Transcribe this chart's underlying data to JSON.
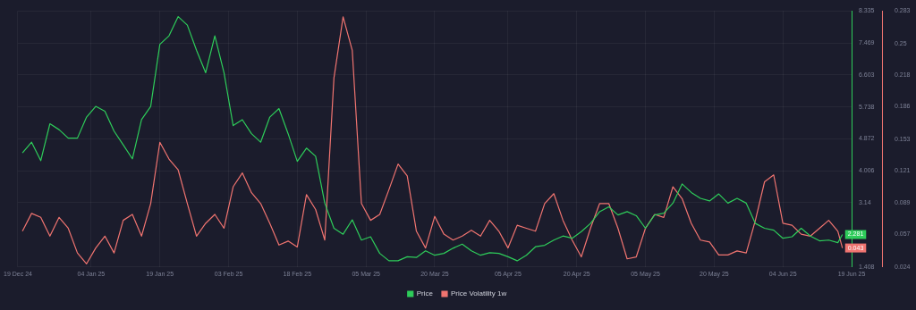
{
  "chart_data": {
    "type": "line",
    "x": [
      "2024-12-20",
      "2024-12-22",
      "2024-12-24",
      "2024-12-26",
      "2024-12-28",
      "2024-12-30",
      "2025-01-01",
      "2025-01-03",
      "2025-01-05",
      "2025-01-07",
      "2025-01-09",
      "2025-01-11",
      "2025-01-13",
      "2025-01-15",
      "2025-01-17",
      "2025-01-19",
      "2025-01-21",
      "2025-01-23",
      "2025-01-25",
      "2025-01-27",
      "2025-01-29",
      "2025-01-31",
      "2025-02-02",
      "2025-02-04",
      "2025-02-06",
      "2025-02-08",
      "2025-02-10",
      "2025-02-12",
      "2025-02-14",
      "2025-02-16",
      "2025-02-18",
      "2025-02-20",
      "2025-02-22",
      "2025-02-24",
      "2025-02-26",
      "2025-02-28",
      "2025-03-02",
      "2025-03-04",
      "2025-03-06",
      "2025-03-08",
      "2025-03-10",
      "2025-03-12",
      "2025-03-14",
      "2025-03-16",
      "2025-03-18",
      "2025-03-20",
      "2025-03-22",
      "2025-03-24",
      "2025-03-26",
      "2025-03-28",
      "2025-03-30",
      "2025-04-01",
      "2025-04-03",
      "2025-04-05",
      "2025-04-07",
      "2025-04-09",
      "2025-04-11",
      "2025-04-13",
      "2025-04-15",
      "2025-04-17",
      "2025-04-19",
      "2025-04-21",
      "2025-04-23",
      "2025-04-25",
      "2025-04-27",
      "2025-04-29",
      "2025-05-01",
      "2025-05-03",
      "2025-05-05",
      "2025-05-07",
      "2025-05-09",
      "2025-05-11",
      "2025-05-13",
      "2025-05-15",
      "2025-05-17",
      "2025-05-19",
      "2025-05-21",
      "2025-05-23",
      "2025-05-25",
      "2025-05-27",
      "2025-05-29",
      "2025-05-31",
      "2025-06-02",
      "2025-06-04",
      "2025-06-06",
      "2025-06-08",
      "2025-06-10",
      "2025-06-12",
      "2025-06-14",
      "2025-06-16",
      "2025-06-17"
    ],
    "series": [
      {
        "name": "Price",
        "color": "#2ecc5a",
        "values": [
          4.49,
          4.78,
          4.28,
          5.28,
          5.12,
          4.89,
          4.89,
          5.46,
          5.75,
          5.62,
          5.08,
          4.71,
          4.33,
          5.39,
          5.75,
          7.43,
          7.66,
          8.18,
          7.95,
          7.27,
          6.66,
          7.66,
          6.66,
          5.23,
          5.39,
          5.01,
          4.78,
          5.46,
          5.69,
          5.01,
          4.26,
          4.62,
          4.4,
          3.13,
          2.45,
          2.29,
          2.68,
          2.13,
          2.22,
          1.77,
          1.57,
          1.57,
          1.68,
          1.66,
          1.84,
          1.72,
          1.77,
          1.91,
          2.02,
          1.84,
          1.72,
          1.79,
          1.77,
          1.68,
          1.57,
          1.72,
          1.95,
          1.99,
          2.13,
          2.24,
          2.18,
          2.36,
          2.58,
          2.9,
          3.03,
          2.81,
          2.9,
          2.79,
          2.45,
          2.81,
          2.86,
          3.13,
          3.65,
          3.42,
          3.26,
          3.19,
          3.38,
          3.13,
          3.26,
          3.13,
          2.58,
          2.45,
          2.4,
          2.18,
          2.22,
          2.45,
          2.24,
          2.11,
          2.13,
          2.06,
          2.281
        ],
        "value_labels": [
          null,
          null,
          null,
          null,
          null,
          null,
          null,
          null,
          null,
          null,
          null,
          null,
          null,
          null,
          null,
          null,
          null,
          null,
          null,
          null,
          null,
          null,
          null,
          null,
          null,
          null,
          null,
          null,
          null,
          null,
          null,
          null,
          null,
          null,
          null,
          null,
          null,
          null,
          null,
          null,
          null,
          null,
          null,
          null,
          null,
          null,
          null,
          null,
          null,
          null,
          null,
          null,
          null,
          null,
          null,
          null,
          null,
          null,
          null,
          null,
          null,
          null,
          null,
          null,
          null,
          null,
          null,
          null,
          null,
          null,
          null,
          null,
          null,
          null,
          null,
          null,
          null,
          null,
          null,
          null,
          null,
          null,
          null,
          null,
          null,
          null,
          null,
          null,
          null,
          null,
          "2.281"
        ]
      },
      {
        "name": "Price Volatility 1w",
        "color": "#f07470",
        "axis": "y2",
        "values": [
          0.06,
          0.078,
          0.074,
          0.055,
          0.074,
          0.063,
          0.038,
          0.027,
          0.043,
          0.055,
          0.038,
          0.071,
          0.077,
          0.055,
          0.088,
          0.15,
          0.133,
          0.122,
          0.088,
          0.055,
          0.068,
          0.077,
          0.063,
          0.105,
          0.119,
          0.099,
          0.088,
          0.068,
          0.046,
          0.05,
          0.044,
          0.097,
          0.082,
          0.051,
          0.215,
          0.277,
          0.243,
          0.088,
          0.071,
          0.077,
          0.102,
          0.128,
          0.116,
          0.06,
          0.043,
          0.075,
          0.057,
          0.051,
          0.055,
          0.061,
          0.055,
          0.071,
          0.06,
          0.043,
          0.066,
          0.063,
          0.06,
          0.088,
          0.098,
          0.071,
          0.051,
          0.034,
          0.063,
          0.088,
          0.088,
          0.063,
          0.032,
          0.034,
          0.063,
          0.077,
          0.074,
          0.105,
          0.093,
          0.068,
          0.051,
          0.049,
          0.036,
          0.036,
          0.04,
          0.038,
          0.071,
          0.11,
          0.117,
          0.068,
          0.066,
          0.057,
          0.055,
          0.063,
          0.071,
          0.06,
          0.043
        ],
        "value_labels": [
          null,
          null,
          null,
          null,
          null,
          null,
          null,
          null,
          null,
          null,
          null,
          null,
          null,
          null,
          null,
          null,
          null,
          null,
          null,
          null,
          null,
          null,
          null,
          null,
          null,
          null,
          null,
          null,
          null,
          null,
          null,
          null,
          null,
          null,
          null,
          null,
          null,
          null,
          null,
          null,
          null,
          null,
          null,
          null,
          null,
          null,
          null,
          null,
          null,
          null,
          null,
          null,
          null,
          null,
          null,
          null,
          null,
          null,
          null,
          null,
          null,
          null,
          null,
          null,
          null,
          null,
          null,
          null,
          null,
          null,
          null,
          null,
          null,
          null,
          null,
          null,
          null,
          null,
          null,
          null,
          null,
          null,
          null,
          null,
          null,
          null,
          null,
          null,
          null,
          null,
          "0.043"
        ]
      }
    ],
    "xlim": [
      "2024-12-19",
      "2025-06-19"
    ],
    "xticks": [
      {
        "value": "2024-12-19",
        "label": "19 Dec 24"
      },
      {
        "value": "2025-01-04",
        "label": "04 Jan 25"
      },
      {
        "value": "2025-01-19",
        "label": "19 Jan 25"
      },
      {
        "value": "2025-02-03",
        "label": "03 Feb 25"
      },
      {
        "value": "2025-02-18",
        "label": "18 Feb 25"
      },
      {
        "value": "2025-03-05",
        "label": "05 Mar 25"
      },
      {
        "value": "2025-03-20",
        "label": "20 Mar 25"
      },
      {
        "value": "2025-04-05",
        "label": "05 Apr 25"
      },
      {
        "value": "2025-04-20",
        "label": "20 Apr 25"
      },
      {
        "value": "2025-05-05",
        "label": "05 May 25"
      },
      {
        "value": "2025-05-20",
        "label": "20 May 25"
      },
      {
        "value": "2025-06-04",
        "label": "04 Jun 25"
      },
      {
        "value": "2025-06-19",
        "label": "19 Jun 25"
      }
    ],
    "ylim": [
      1.408,
      8.335
    ],
    "yticks": [
      1.408,
      3.14,
      4.006,
      4.872,
      5.738,
      6.603,
      7.469,
      8.335
    ],
    "y2lim": [
      0.024,
      0.283
    ],
    "y2ticks": [
      0.024,
      0.057,
      0.089,
      0.121,
      0.153,
      0.186,
      0.218,
      0.25,
      0.283
    ],
    "grid": true,
    "legend": "bottom",
    "marker": "none",
    "line_style": "solid"
  }
}
